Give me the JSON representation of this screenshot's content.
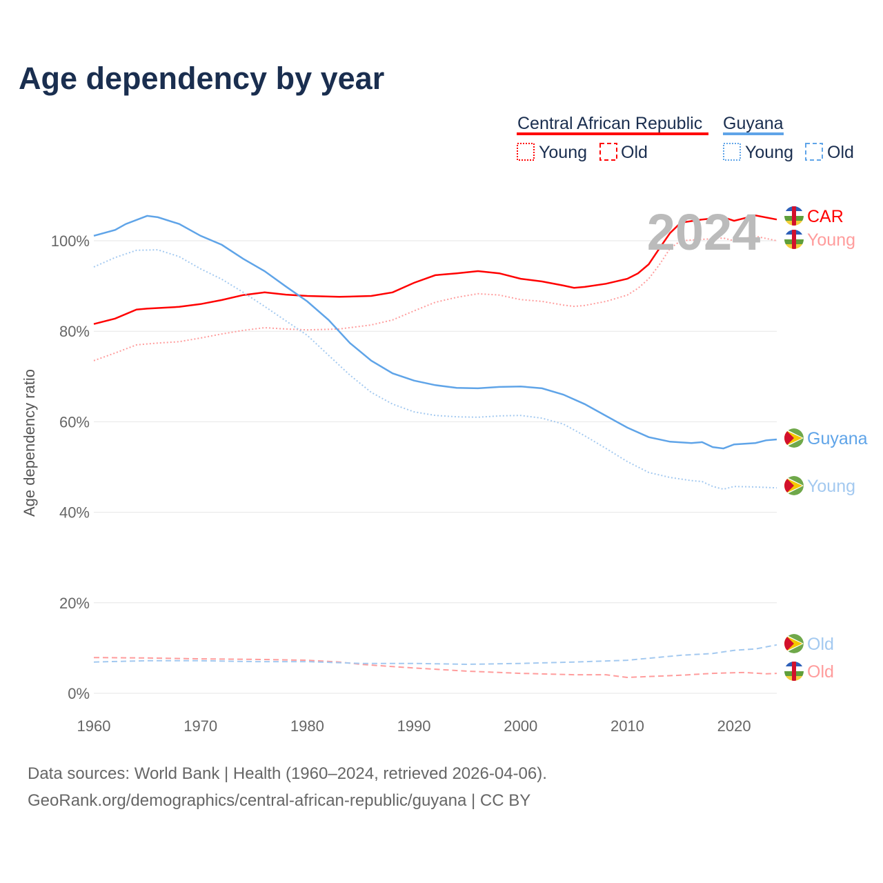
{
  "title": "Age dependency by year",
  "footer": {
    "line1": "Data sources: World Bank | Health (1960–2024, retrieved 2026-04-06).",
    "line2": "GeoRank.org/demographics/central-african-republic/guyana | CC BY"
  },
  "legend": {
    "countries": [
      {
        "name": "Central African Republic",
        "color": "#ff0000"
      },
      {
        "name": "Guyana",
        "color": "#5fa4e8"
      }
    ],
    "young_label": "Young",
    "old_label": "Old"
  },
  "year_watermark": "2024",
  "end_labels": {
    "car_total": "CAR",
    "car_young": "Young",
    "car_old": "Old",
    "guyana_total": "Guyana",
    "guyana_young": "Young",
    "guyana_old": "Old"
  },
  "chart_data": {
    "type": "line",
    "title": "Age dependency by year",
    "xlabel": "",
    "ylabel": "Age dependency ratio",
    "xlim": [
      1960,
      2024
    ],
    "ylim": [
      0,
      110
    ],
    "xticks": [
      1960,
      1970,
      1980,
      1990,
      2000,
      2010,
      2020
    ],
    "yticks": [
      0,
      20,
      40,
      60,
      80,
      100
    ],
    "ytick_labels": [
      "0%",
      "20%",
      "40%",
      "60%",
      "80%",
      "100%"
    ],
    "grid": true,
    "series": [
      {
        "name": "Central African Republic",
        "key": "car_total",
        "color": "#ff0000",
        "style": "solid",
        "x": [
          1960,
          1962,
          1964,
          1965,
          1968,
          1970,
          1972,
          1974,
          1976,
          1978,
          1980,
          1983,
          1986,
          1988,
          1990,
          1992,
          1994,
          1996,
          1998,
          2000,
          2002,
          2004,
          2005,
          2006,
          2008,
          2010,
          2011,
          2012,
          2013,
          2014,
          2015,
          2017,
          2019,
          2020,
          2022,
          2024
        ],
        "y": [
          81.6,
          82.8,
          84.8,
          85,
          85.4,
          86,
          86.9,
          88,
          88.6,
          88.1,
          87.8,
          87.6,
          87.8,
          88.6,
          90.7,
          92.4,
          92.8,
          93.3,
          92.8,
          91.6,
          91,
          90.1,
          89.6,
          89.8,
          90.5,
          91.6,
          92.8,
          94.8,
          98.3,
          101.7,
          104,
          104.7,
          105.2,
          104.4,
          105.6,
          104.7
        ]
      },
      {
        "name": "Central African Republic Young",
        "key": "car_young",
        "color": "#ff9c9c",
        "style": "dotted",
        "x": [
          1960,
          1962,
          1964,
          1966,
          1968,
          1970,
          1972,
          1974,
          1976,
          1978,
          1980,
          1983,
          1986,
          1988,
          1990,
          1992,
          1994,
          1996,
          1998,
          2000,
          2002,
          2004,
          2005,
          2006,
          2008,
          2010,
          2011,
          2012,
          2013,
          2014,
          2015,
          2017,
          2019,
          2020,
          2022,
          2024
        ],
        "y": [
          73.5,
          75.2,
          77,
          77.4,
          77.7,
          78.5,
          79.4,
          80.2,
          80.8,
          80.5,
          80.3,
          80.5,
          81.4,
          82.5,
          84.5,
          86.4,
          87.5,
          88.3,
          88,
          87,
          86.6,
          85.8,
          85.5,
          85.7,
          86.6,
          88,
          89.5,
          91.6,
          94.7,
          98.3,
          100,
          100.3,
          100.6,
          100,
          101,
          100
        ]
      },
      {
        "name": "Central African Republic Old",
        "key": "car_old",
        "color": "#ff9c9c",
        "style": "dashed",
        "x": [
          1960,
          1965,
          1970,
          1975,
          1980,
          1983,
          1985,
          1988,
          1990,
          1995,
          2000,
          2005,
          2008,
          2010,
          2012,
          2015,
          2018,
          2021,
          2023,
          2024
        ],
        "y": [
          7.9,
          7.8,
          7.6,
          7.5,
          7.3,
          6.9,
          6.4,
          5.9,
          5.6,
          4.9,
          4.4,
          4.1,
          4.1,
          3.5,
          3.7,
          4,
          4.4,
          4.6,
          4.3,
          4.4
        ]
      },
      {
        "name": "Guyana",
        "key": "guyana_total",
        "color": "#5fa4e8",
        "style": "solid",
        "x": [
          1960,
          1962,
          1963,
          1965,
          1966,
          1968,
          1970,
          1972,
          1974,
          1976,
          1978,
          1980,
          1982,
          1984,
          1986,
          1988,
          1990,
          1992,
          1994,
          1996,
          1998,
          2000,
          2002,
          2004,
          2006,
          2008,
          2010,
          2012,
          2014,
          2016,
          2017,
          2018,
          2019,
          2020,
          2022,
          2023,
          2024
        ],
        "y": [
          101.1,
          102.4,
          103.7,
          105.5,
          105.2,
          103.7,
          101.1,
          99.1,
          96,
          93.3,
          89.9,
          86.6,
          82.5,
          77.4,
          73.5,
          70.7,
          69.1,
          68.1,
          67.5,
          67.4,
          67.7,
          67.8,
          67.4,
          66,
          63.9,
          61.3,
          58.7,
          56.6,
          55.6,
          55.3,
          55.5,
          54.4,
          54.1,
          55,
          55.3,
          55.9,
          56.1
        ]
      },
      {
        "name": "Guyana Young",
        "key": "guyana_young",
        "color": "#a3c9f0",
        "style": "dotted",
        "x": [
          1960,
          1962,
          1964,
          1966,
          1968,
          1970,
          1972,
          1974,
          1976,
          1978,
          1980,
          1982,
          1984,
          1986,
          1988,
          1990,
          1992,
          1994,
          1996,
          1998,
          2000,
          2002,
          2004,
          2006,
          2008,
          2010,
          2012,
          2014,
          2016,
          2017,
          2018,
          2019,
          2020,
          2022,
          2024
        ],
        "y": [
          94.2,
          96.3,
          97.9,
          98,
          96.5,
          93.8,
          91.5,
          88.6,
          85.5,
          82.3,
          79.1,
          74.7,
          70.3,
          66.5,
          63.9,
          62.2,
          61.4,
          61.1,
          61,
          61.3,
          61.4,
          60.8,
          59.5,
          56.9,
          54.1,
          51.2,
          48.8,
          47.7,
          47,
          46.8,
          45.7,
          45.1,
          45.7,
          45.6,
          45.4
        ]
      },
      {
        "name": "Guyana Old",
        "key": "guyana_old",
        "color": "#a3c9f0",
        "style": "dashed",
        "x": [
          1960,
          1965,
          1970,
          1975,
          1980,
          1985,
          1990,
          1995,
          2000,
          2005,
          2010,
          2015,
          2018,
          2020,
          2022,
          2024
        ],
        "y": [
          6.9,
          7.2,
          7.2,
          7,
          7,
          6.6,
          6.6,
          6.4,
          6.6,
          6.9,
          7.3,
          8.4,
          8.8,
          9.5,
          9.8,
          10.7
        ]
      }
    ]
  }
}
